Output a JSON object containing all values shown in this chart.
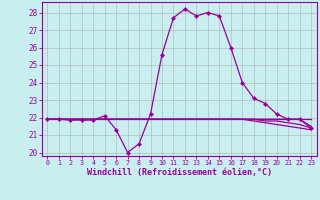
{
  "title": "",
  "xlabel": "Windchill (Refroidissement éolien,°C)",
  "ylabel": "",
  "bg_color": "#c8eef0",
  "line_color": "#990099",
  "grid_color": "#b0b0b0",
  "x_data": [
    0,
    1,
    2,
    3,
    4,
    5,
    6,
    7,
    8,
    9,
    10,
    11,
    12,
    13,
    14,
    15,
    16,
    17,
    18,
    19,
    20,
    21,
    22,
    23
  ],
  "y_curve": [
    21.9,
    21.9,
    21.85,
    21.85,
    21.85,
    22.1,
    21.3,
    20.0,
    20.5,
    22.2,
    25.6,
    27.7,
    28.2,
    27.8,
    28.0,
    27.8,
    26.0,
    24.0,
    23.1,
    22.8,
    22.2,
    21.9,
    21.9,
    21.4
  ],
  "y_flat1": [
    21.9,
    21.9,
    21.9,
    21.9,
    21.9,
    21.9,
    21.9,
    21.9,
    21.9,
    21.9,
    21.9,
    21.9,
    21.9,
    21.9,
    21.9,
    21.9,
    21.9,
    21.9,
    21.9,
    21.9,
    21.9,
    21.9,
    21.9,
    21.5
  ],
  "y_flat2": [
    21.9,
    21.9,
    21.9,
    21.9,
    21.9,
    21.9,
    21.9,
    21.9,
    21.9,
    21.9,
    21.9,
    21.9,
    21.9,
    21.9,
    21.9,
    21.9,
    21.9,
    21.9,
    21.9,
    21.8,
    21.8,
    21.7,
    21.6,
    21.4
  ],
  "y_flat3": [
    21.9,
    21.9,
    21.9,
    21.9,
    21.9,
    21.9,
    21.9,
    21.9,
    21.9,
    21.9,
    21.9,
    21.9,
    21.9,
    21.9,
    21.9,
    21.9,
    21.9,
    21.9,
    21.8,
    21.7,
    21.6,
    21.5,
    21.4,
    21.3
  ],
  "y_flat4": [
    21.9,
    21.9,
    21.9,
    21.9,
    21.9,
    21.9,
    21.9,
    21.9,
    21.9,
    21.9,
    21.9,
    21.9,
    21.9,
    21.9,
    21.9,
    21.9,
    21.9,
    21.9,
    21.9,
    21.9,
    21.9,
    21.9,
    21.9,
    21.9
  ],
  "ylim": [
    19.8,
    28.6
  ],
  "yticks": [
    20,
    21,
    22,
    23,
    24,
    25,
    26,
    27,
    28
  ],
  "xlim": [
    -0.5,
    23.5
  ],
  "xticks": [
    0,
    1,
    2,
    3,
    4,
    5,
    6,
    7,
    8,
    9,
    10,
    11,
    12,
    13,
    14,
    15,
    16,
    17,
    18,
    19,
    20,
    21,
    22,
    23
  ],
  "marker_size": 2.5,
  "line_width": 0.9
}
